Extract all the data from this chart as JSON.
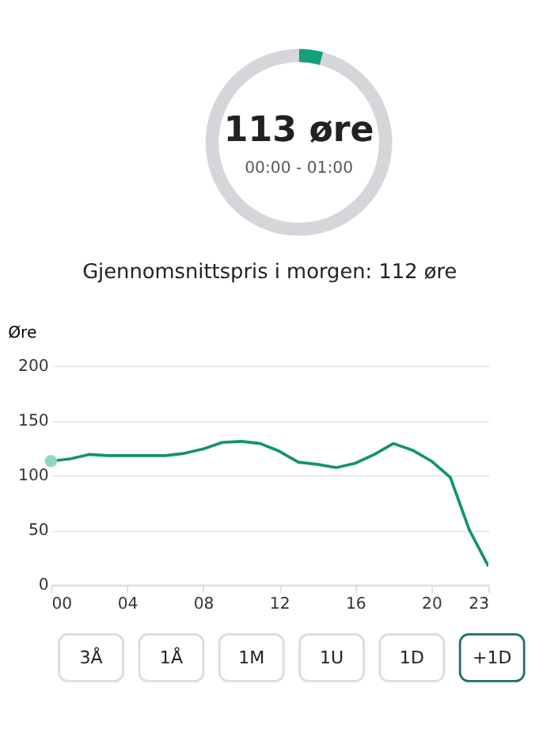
{
  "chart_data": [
    {
      "type": "donut",
      "categories": [
        null,
        null
      ],
      "values": [
        4.2,
        95.8
      ],
      "colors": [
        "#13a07a",
        "#d6d6da"
      ],
      "annotations": [
        "113 øre",
        "00:00 - 01:00"
      ]
    },
    {
      "type": "line",
      "title": "Gjennomsnittspris i morgen: 112 øre",
      "ylabel": "Øre",
      "x": [
        0,
        1,
        2,
        3,
        4,
        5,
        6,
        7,
        8,
        9,
        10,
        11,
        12,
        13,
        14,
        15,
        16,
        17,
        18,
        19,
        20,
        21,
        22,
        23
      ],
      "series": [
        {
          "type": "line",
          "color": "#13936c",
          "values": [
            113,
            115,
            119,
            118,
            118,
            118,
            118,
            120,
            124,
            130,
            131,
            129,
            122,
            112,
            110,
            107,
            111,
            119,
            129,
            123,
            113,
            98,
            50,
            17
          ]
        },
        {
          "type": "scatter",
          "color": "#8fd9c3",
          "x": [
            0
          ],
          "values": [
            113
          ]
        }
      ],
      "xlim": [
        0,
        23
      ],
      "xticks": [
        {
          "value": 0,
          "label": "00"
        },
        {
          "value": 4,
          "label": "04"
        },
        {
          "value": 8,
          "label": "08"
        },
        12,
        16,
        20,
        23
      ],
      "ylim": [
        0,
        200
      ],
      "yticks": [
        0,
        50,
        100,
        150,
        200
      ],
      "grid": "y"
    },
    {
      "type": "other",
      "annotations": [
        "3Å",
        "1Å",
        "1M",
        "1U",
        "1D",
        "+1D"
      ],
      "colors": [
        "#dcdcdc",
        "#dcdcdc",
        "#dcdcdc",
        "#dcdcdc",
        "#dcdcdc",
        "#1f6f6a"
      ]
    }
  ]
}
